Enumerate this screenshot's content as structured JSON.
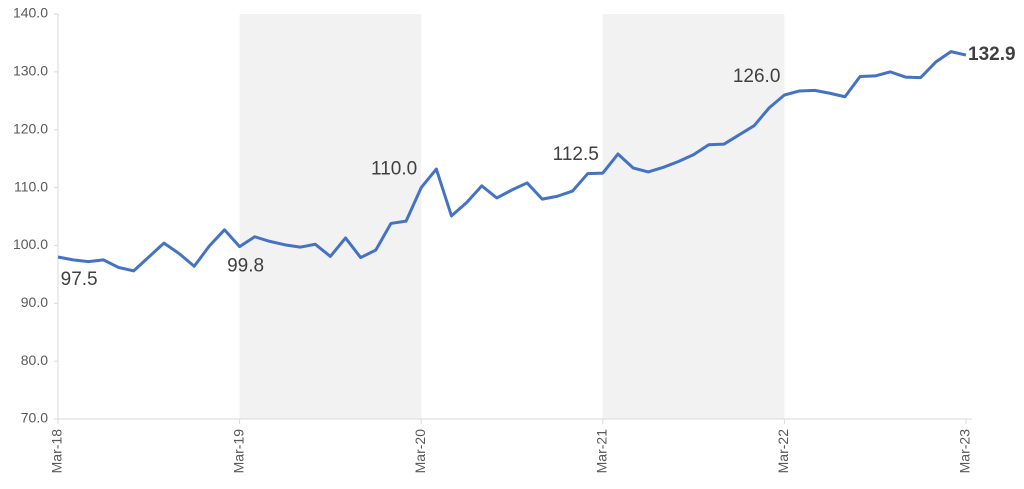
{
  "chart_data": {
    "type": "line",
    "categories": [
      "Mar-18",
      null,
      null,
      null,
      null,
      null,
      null,
      null,
      null,
      null,
      null,
      null,
      "Mar-19",
      null,
      null,
      null,
      null,
      null,
      null,
      null,
      null,
      null,
      null,
      null,
      "Mar-20",
      null,
      null,
      null,
      null,
      null,
      null,
      null,
      null,
      null,
      null,
      null,
      "Mar-21",
      null,
      null,
      null,
      null,
      null,
      null,
      null,
      null,
      null,
      null,
      null,
      "Mar-22",
      null,
      null,
      null,
      null,
      null,
      null,
      null,
      null,
      null,
      null,
      null,
      "Mar-23"
    ],
    "values": [
      98.0,
      97.5,
      97.2,
      97.5,
      96.2,
      95.6,
      98.0,
      100.4,
      98.6,
      96.4,
      99.9,
      102.7,
      99.8,
      101.5,
      100.7,
      100.1,
      99.7,
      100.2,
      98.1,
      101.3,
      97.9,
      99.2,
      103.8,
      104.2,
      110.0,
      113.2,
      105.1,
      107.4,
      110.3,
      108.2,
      109.6,
      110.8,
      108.0,
      108.5,
      109.4,
      112.4,
      112.5,
      115.8,
      113.4,
      112.7,
      113.5,
      114.5,
      115.7,
      117.4,
      117.5,
      119.1,
      120.7,
      123.8,
      126.0,
      126.7,
      126.8,
      126.3,
      125.7,
      129.2,
      129.3,
      130.0,
      129.1,
      129.0,
      131.7,
      133.5,
      132.9
    ],
    "value_labels": [
      null,
      "97.5",
      null,
      null,
      null,
      null,
      null,
      null,
      null,
      null,
      null,
      null,
      "99.8",
      null,
      null,
      null,
      null,
      null,
      null,
      null,
      null,
      null,
      null,
      null,
      "110.0",
      null,
      null,
      null,
      null,
      null,
      null,
      null,
      null,
      null,
      null,
      null,
      "112.5",
      null,
      null,
      null,
      null,
      null,
      null,
      null,
      null,
      null,
      null,
      null,
      "126.0",
      null,
      null,
      null,
      null,
      null,
      null,
      null,
      null,
      null,
      null,
      null,
      "132.9"
    ],
    "color": "#4472c4",
    "ylim": [
      70,
      140
    ],
    "yticks": [
      {
        "value": 70,
        "label": "70.0"
      },
      {
        "value": 80,
        "label": "80.0"
      },
      {
        "value": 90,
        "label": "90.0"
      },
      {
        "value": 100,
        "label": "100.0"
      },
      {
        "value": 110,
        "label": "110.0"
      },
      {
        "value": 120,
        "label": "120.0"
      },
      {
        "value": 130,
        "label": "130.0"
      },
      {
        "value": 140,
        "label": "140.0"
      }
    ],
    "shaded_ranges": [
      [
        "Mar-19",
        "Mar-20"
      ],
      [
        "Mar-21",
        "Mar-22"
      ]
    ],
    "shade_color": "#f2f2f2"
  }
}
